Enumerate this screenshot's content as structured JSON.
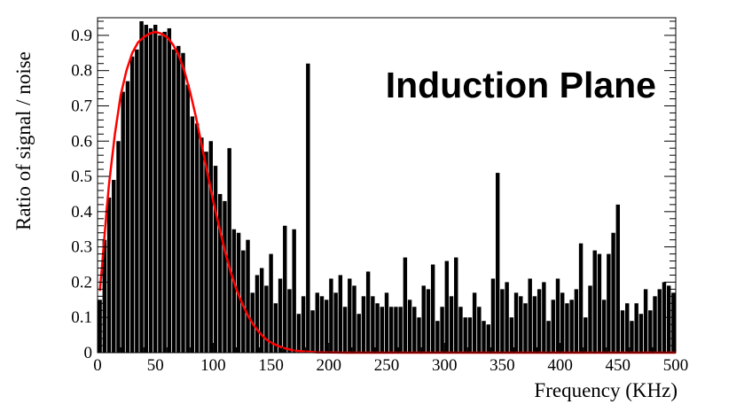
{
  "chart_data": {
    "type": "bar",
    "annotation": "Induction Plane",
    "xlabel": "Frequency (KHz)",
    "ylabel": "Ratio of signal / noise",
    "xlim": [
      0,
      500
    ],
    "ylim": [
      0,
      0.95
    ],
    "x_ticks": [
      "0",
      "50",
      "100",
      "150",
      "200",
      "250",
      "300",
      "350",
      "400",
      "450",
      "500"
    ],
    "y_ticks": [
      "0",
      "0.1",
      "0.2",
      "0.3",
      "0.4",
      "0.5",
      "0.6",
      "0.7",
      "0.8",
      "0.9"
    ],
    "grid": false,
    "legend": "none",
    "bar_color": "#000000",
    "fit_color": "#ff0000",
    "series": [
      {
        "kind": "histogram",
        "x": [
          2,
          6,
          10,
          14,
          18,
          22,
          26,
          30,
          34,
          38,
          42,
          46,
          50,
          54,
          58,
          62,
          66,
          70,
          74,
          78,
          82,
          86,
          90,
          94,
          98,
          102,
          106,
          110,
          114,
          118,
          122,
          126,
          130,
          134,
          138,
          142,
          146,
          150,
          154,
          158,
          162,
          166,
          170,
          174,
          178,
          182,
          186,
          190,
          194,
          198,
          202,
          206,
          210,
          214,
          218,
          222,
          226,
          230,
          234,
          238,
          242,
          246,
          250,
          254,
          258,
          262,
          266,
          270,
          274,
          278,
          282,
          286,
          290,
          294,
          298,
          302,
          306,
          310,
          314,
          318,
          322,
          326,
          330,
          334,
          338,
          342,
          346,
          350,
          354,
          358,
          362,
          366,
          370,
          374,
          378,
          382,
          386,
          390,
          394,
          398,
          402,
          406,
          410,
          414,
          418,
          422,
          426,
          430,
          434,
          438,
          442,
          446,
          450,
          454,
          458,
          462,
          466,
          470,
          474,
          478,
          482,
          486,
          490,
          494,
          498
        ],
        "values": [
          0.15,
          0.32,
          0.44,
          0.49,
          0.6,
          0.74,
          0.77,
          0.84,
          0.86,
          0.94,
          0.93,
          0.92,
          0.93,
          0.9,
          0.91,
          0.92,
          0.86,
          0.87,
          0.85,
          0.76,
          0.67,
          0.65,
          0.61,
          0.57,
          0.6,
          0.53,
          0.45,
          0.43,
          0.58,
          0.35,
          0.34,
          0.29,
          0.32,
          0.17,
          0.22,
          0.24,
          0.19,
          0.28,
          0.14,
          0.21,
          0.36,
          0.18,
          0.35,
          0.11,
          0.16,
          0.82,
          0.12,
          0.17,
          0.16,
          0.15,
          0.21,
          0.17,
          0.22,
          0.13,
          0.21,
          0.19,
          0.11,
          0.16,
          0.23,
          0.16,
          0.14,
          0.13,
          0.17,
          0.13,
          0.13,
          0.13,
          0.27,
          0.15,
          0.13,
          0.1,
          0.19,
          0.18,
          0.25,
          0.09,
          0.13,
          0.26,
          0.16,
          0.27,
          0.13,
          0.1,
          0.1,
          0.17,
          0.13,
          0.09,
          0.08,
          0.21,
          0.51,
          0.18,
          0.2,
          0.1,
          0.17,
          0.16,
          0.14,
          0.21,
          0.16,
          0.18,
          0.2,
          0.09,
          0.15,
          0.21,
          0.17,
          0.14,
          0.15,
          0.18,
          0.31,
          0.1,
          0.19,
          0.29,
          0.28,
          0.15,
          0.28,
          0.34,
          0.42,
          0.12,
          0.14,
          0.09,
          0.14,
          0.11,
          0.18,
          0.12,
          0.16,
          0.18,
          0.2,
          0.19,
          0.17
        ]
      },
      {
        "kind": "fit_curve",
        "x": [
          2,
          4,
          6,
          8,
          10,
          15,
          20,
          25,
          30,
          35,
          40,
          45,
          50,
          55,
          60,
          65,
          70,
          75,
          80,
          85,
          90,
          95,
          100,
          105,
          110,
          115,
          120,
          125,
          130,
          135,
          140,
          145,
          150,
          160,
          170,
          180,
          190,
          200,
          215,
          230,
          250,
          300,
          400,
          500
        ],
        "values": [
          0.175,
          0.25,
          0.33,
          0.41,
          0.48,
          0.62,
          0.73,
          0.8,
          0.85,
          0.88,
          0.895,
          0.905,
          0.91,
          0.905,
          0.895,
          0.875,
          0.845,
          0.8,
          0.74,
          0.67,
          0.59,
          0.51,
          0.43,
          0.36,
          0.29,
          0.23,
          0.18,
          0.14,
          0.105,
          0.078,
          0.057,
          0.04,
          0.028,
          0.014,
          0.006,
          0.003,
          0.001,
          0.0005,
          0.0001,
          0,
          0,
          0,
          0,
          0
        ]
      }
    ]
  }
}
